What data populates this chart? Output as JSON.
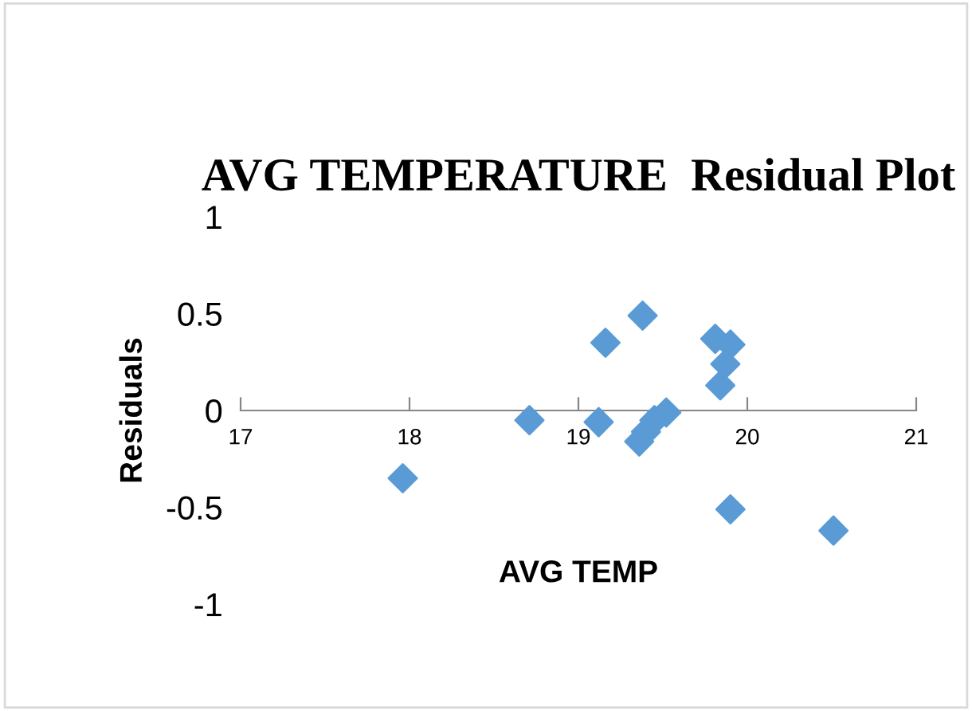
{
  "chart_data": {
    "type": "scatter",
    "title": "AVG TEMPERATURE  Residual Plot",
    "xlabel": "AVG TEMP",
    "ylabel": "Residuals",
    "x": [
      17.96,
      18.71,
      19.12,
      19.16,
      19.38,
      19.36,
      19.4,
      19.45,
      19.52,
      19.81,
      19.9,
      19.87,
      19.84,
      19.9,
      20.51
    ],
    "series": [
      {
        "color": "#5b9bd5",
        "values": [
          -0.35,
          -0.05,
          -0.06,
          0.35,
          0.49,
          -0.16,
          -0.11,
          -0.05,
          -0.01,
          0.37,
          0.34,
          0.24,
          0.13,
          -0.51,
          -0.62
        ]
      }
    ],
    "xlim": [
      17,
      21
    ],
    "xticks": [
      17,
      18,
      19,
      20,
      21
    ],
    "ylim": [
      -1,
      1
    ],
    "yticks": [
      -1,
      -0.5,
      0,
      0.5,
      1
    ],
    "grid": false,
    "marker": "diamond",
    "legend": false
  }
}
